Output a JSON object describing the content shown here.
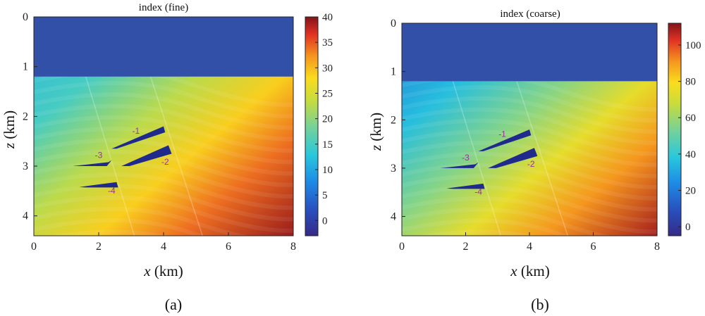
{
  "chart_data": [
    {
      "type": "heatmap",
      "title": "index (fine)",
      "xlabel": {
        "var": "x",
        "unit": " (km)"
      },
      "ylabel": {
        "var": "z",
        "unit": " (km)"
      },
      "xlim": [
        0,
        8
      ],
      "ylim": [
        4.4,
        0
      ],
      "x_ticks": [
        "0",
        "2",
        "4",
        "6",
        "8"
      ],
      "y_ticks": [
        "0",
        "1",
        "2",
        "3",
        "4"
      ],
      "colorbar": {
        "min": -3,
        "max": 40,
        "ticks": [
          "0",
          "5",
          "10",
          "15",
          "20",
          "25",
          "30",
          "35",
          "40"
        ]
      },
      "water_layer": {
        "z_bottom": 1.2,
        "value": 0
      },
      "faults": [
        {
          "label": "-1",
          "polygon": [
            [
              2.4,
              2.65
            ],
            [
              4.0,
              2.2
            ],
            [
              4.05,
              2.32
            ],
            [
              2.55,
              2.65
            ]
          ],
          "label_at": [
            3.15,
            2.35
          ]
        },
        {
          "label": "-2",
          "polygon": [
            [
              2.7,
              3.0
            ],
            [
              4.15,
              2.58
            ],
            [
              4.25,
              2.75
            ],
            [
              2.95,
              3.0
            ]
          ],
          "label_at": [
            4.05,
            2.97
          ]
        },
        {
          "label": "-3",
          "polygon": [
            [
              1.2,
              3.0
            ],
            [
              2.3,
              2.92
            ],
            [
              2.4,
              2.88
            ],
            [
              2.25,
              3.0
            ]
          ],
          "label_at": [
            2.0,
            2.84
          ]
        },
        {
          "label": "-4",
          "polygon": [
            [
              1.4,
              3.42
            ],
            [
              2.55,
              3.32
            ],
            [
              2.6,
              3.43
            ],
            [
              1.6,
              3.43
            ]
          ],
          "label_at": [
            2.4,
            3.55
          ]
        }
      ],
      "caption": "(a)"
    },
    {
      "type": "heatmap",
      "title": "index (coarse)",
      "xlabel": {
        "var": "x",
        "unit": " (km)"
      },
      "ylabel": {
        "var": "z",
        "unit": " (km)"
      },
      "xlim": [
        0,
        8
      ],
      "ylim": [
        4.4,
        0
      ],
      "x_ticks": [
        "0",
        "2",
        "4",
        "6",
        "8"
      ],
      "y_ticks": [
        "0",
        "1",
        "2",
        "3",
        "4"
      ],
      "colorbar": {
        "min": -5,
        "max": 112,
        "ticks": [
          "0",
          "20",
          "40",
          "60",
          "80",
          "100"
        ]
      },
      "water_layer": {
        "z_bottom": 1.2,
        "value": 0
      },
      "faults": [
        {
          "label": "-1",
          "polygon": [
            [
              2.4,
              2.65
            ],
            [
              4.0,
              2.2
            ],
            [
              4.05,
              2.32
            ],
            [
              2.55,
              2.65
            ]
          ],
          "label_at": [
            3.15,
            2.35
          ]
        },
        {
          "label": "-2",
          "polygon": [
            [
              2.7,
              3.0
            ],
            [
              4.15,
              2.58
            ],
            [
              4.25,
              2.75
            ],
            [
              2.95,
              3.0
            ]
          ],
          "label_at": [
            4.05,
            2.97
          ]
        },
        {
          "label": "-3",
          "polygon": [
            [
              1.2,
              3.0
            ],
            [
              2.3,
              2.92
            ],
            [
              2.4,
              2.88
            ],
            [
              2.25,
              3.0
            ]
          ],
          "label_at": [
            2.0,
            2.84
          ]
        },
        {
          "label": "-4",
          "polygon": [
            [
              1.4,
              3.42
            ],
            [
              2.55,
              3.32
            ],
            [
              2.6,
              3.43
            ],
            [
              1.6,
              3.43
            ]
          ],
          "label_at": [
            2.4,
            3.55
          ]
        }
      ],
      "caption": "(b)"
    }
  ],
  "colors": {
    "water": "#3350a8",
    "fault_fill": "#1f2a8c",
    "fault_label": "#9b2fa0"
  }
}
